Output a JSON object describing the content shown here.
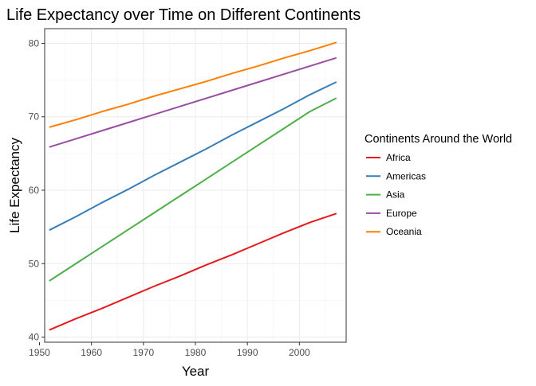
{
  "chart_data": {
    "type": "line",
    "title": "Life Expectancy over Time on Different Continents",
    "xlabel": "Year",
    "ylabel": "Life Expectancy",
    "xlim": [
      1951,
      2009
    ],
    "ylim": [
      39.3,
      82.0
    ],
    "x_ticks": [
      1950,
      1960,
      1970,
      1980,
      1990,
      2000
    ],
    "y_ticks": [
      40,
      50,
      60,
      70,
      80
    ],
    "x_tick_labels": [
      "1950",
      "1960",
      "1970",
      "1980",
      "1990",
      "2000"
    ],
    "y_tick_labels": [
      "40",
      "50",
      "60",
      "70",
      "80"
    ],
    "grid": true,
    "legend": {
      "title": "Continents Around the World",
      "position": "right"
    },
    "x": [
      1952,
      1957,
      1962,
      1967,
      1972,
      1977,
      1982,
      1987,
      1992,
      1997,
      2002,
      2007
    ],
    "series": [
      {
        "name": "Africa",
        "color": "#e41a1c",
        "values": [
          41.0,
          42.5,
          43.9,
          45.4,
          46.9,
          48.3,
          49.8,
          51.2,
          52.7,
          54.2,
          55.6,
          56.8
        ]
      },
      {
        "name": "Americas",
        "color": "#377eb8",
        "values": [
          54.6,
          56.4,
          58.3,
          60.1,
          62.0,
          63.8,
          65.6,
          67.5,
          69.3,
          71.1,
          73.0,
          74.7
        ]
      },
      {
        "name": "Asia",
        "color": "#4daf4a",
        "values": [
          47.7,
          50.0,
          52.3,
          54.6,
          56.9,
          59.2,
          61.5,
          63.8,
          66.1,
          68.4,
          70.7,
          72.5
        ]
      },
      {
        "name": "Europe",
        "color": "#984ea3",
        "values": [
          65.9,
          67.0,
          68.1,
          69.2,
          70.3,
          71.4,
          72.5,
          73.6,
          74.7,
          75.8,
          76.9,
          78.0
        ]
      },
      {
        "name": "Oceania",
        "color": "#ff7f00",
        "values": [
          68.6,
          69.6,
          70.7,
          71.7,
          72.8,
          73.8,
          74.8,
          75.9,
          76.9,
          78.0,
          79.0,
          80.1
        ]
      }
    ]
  }
}
